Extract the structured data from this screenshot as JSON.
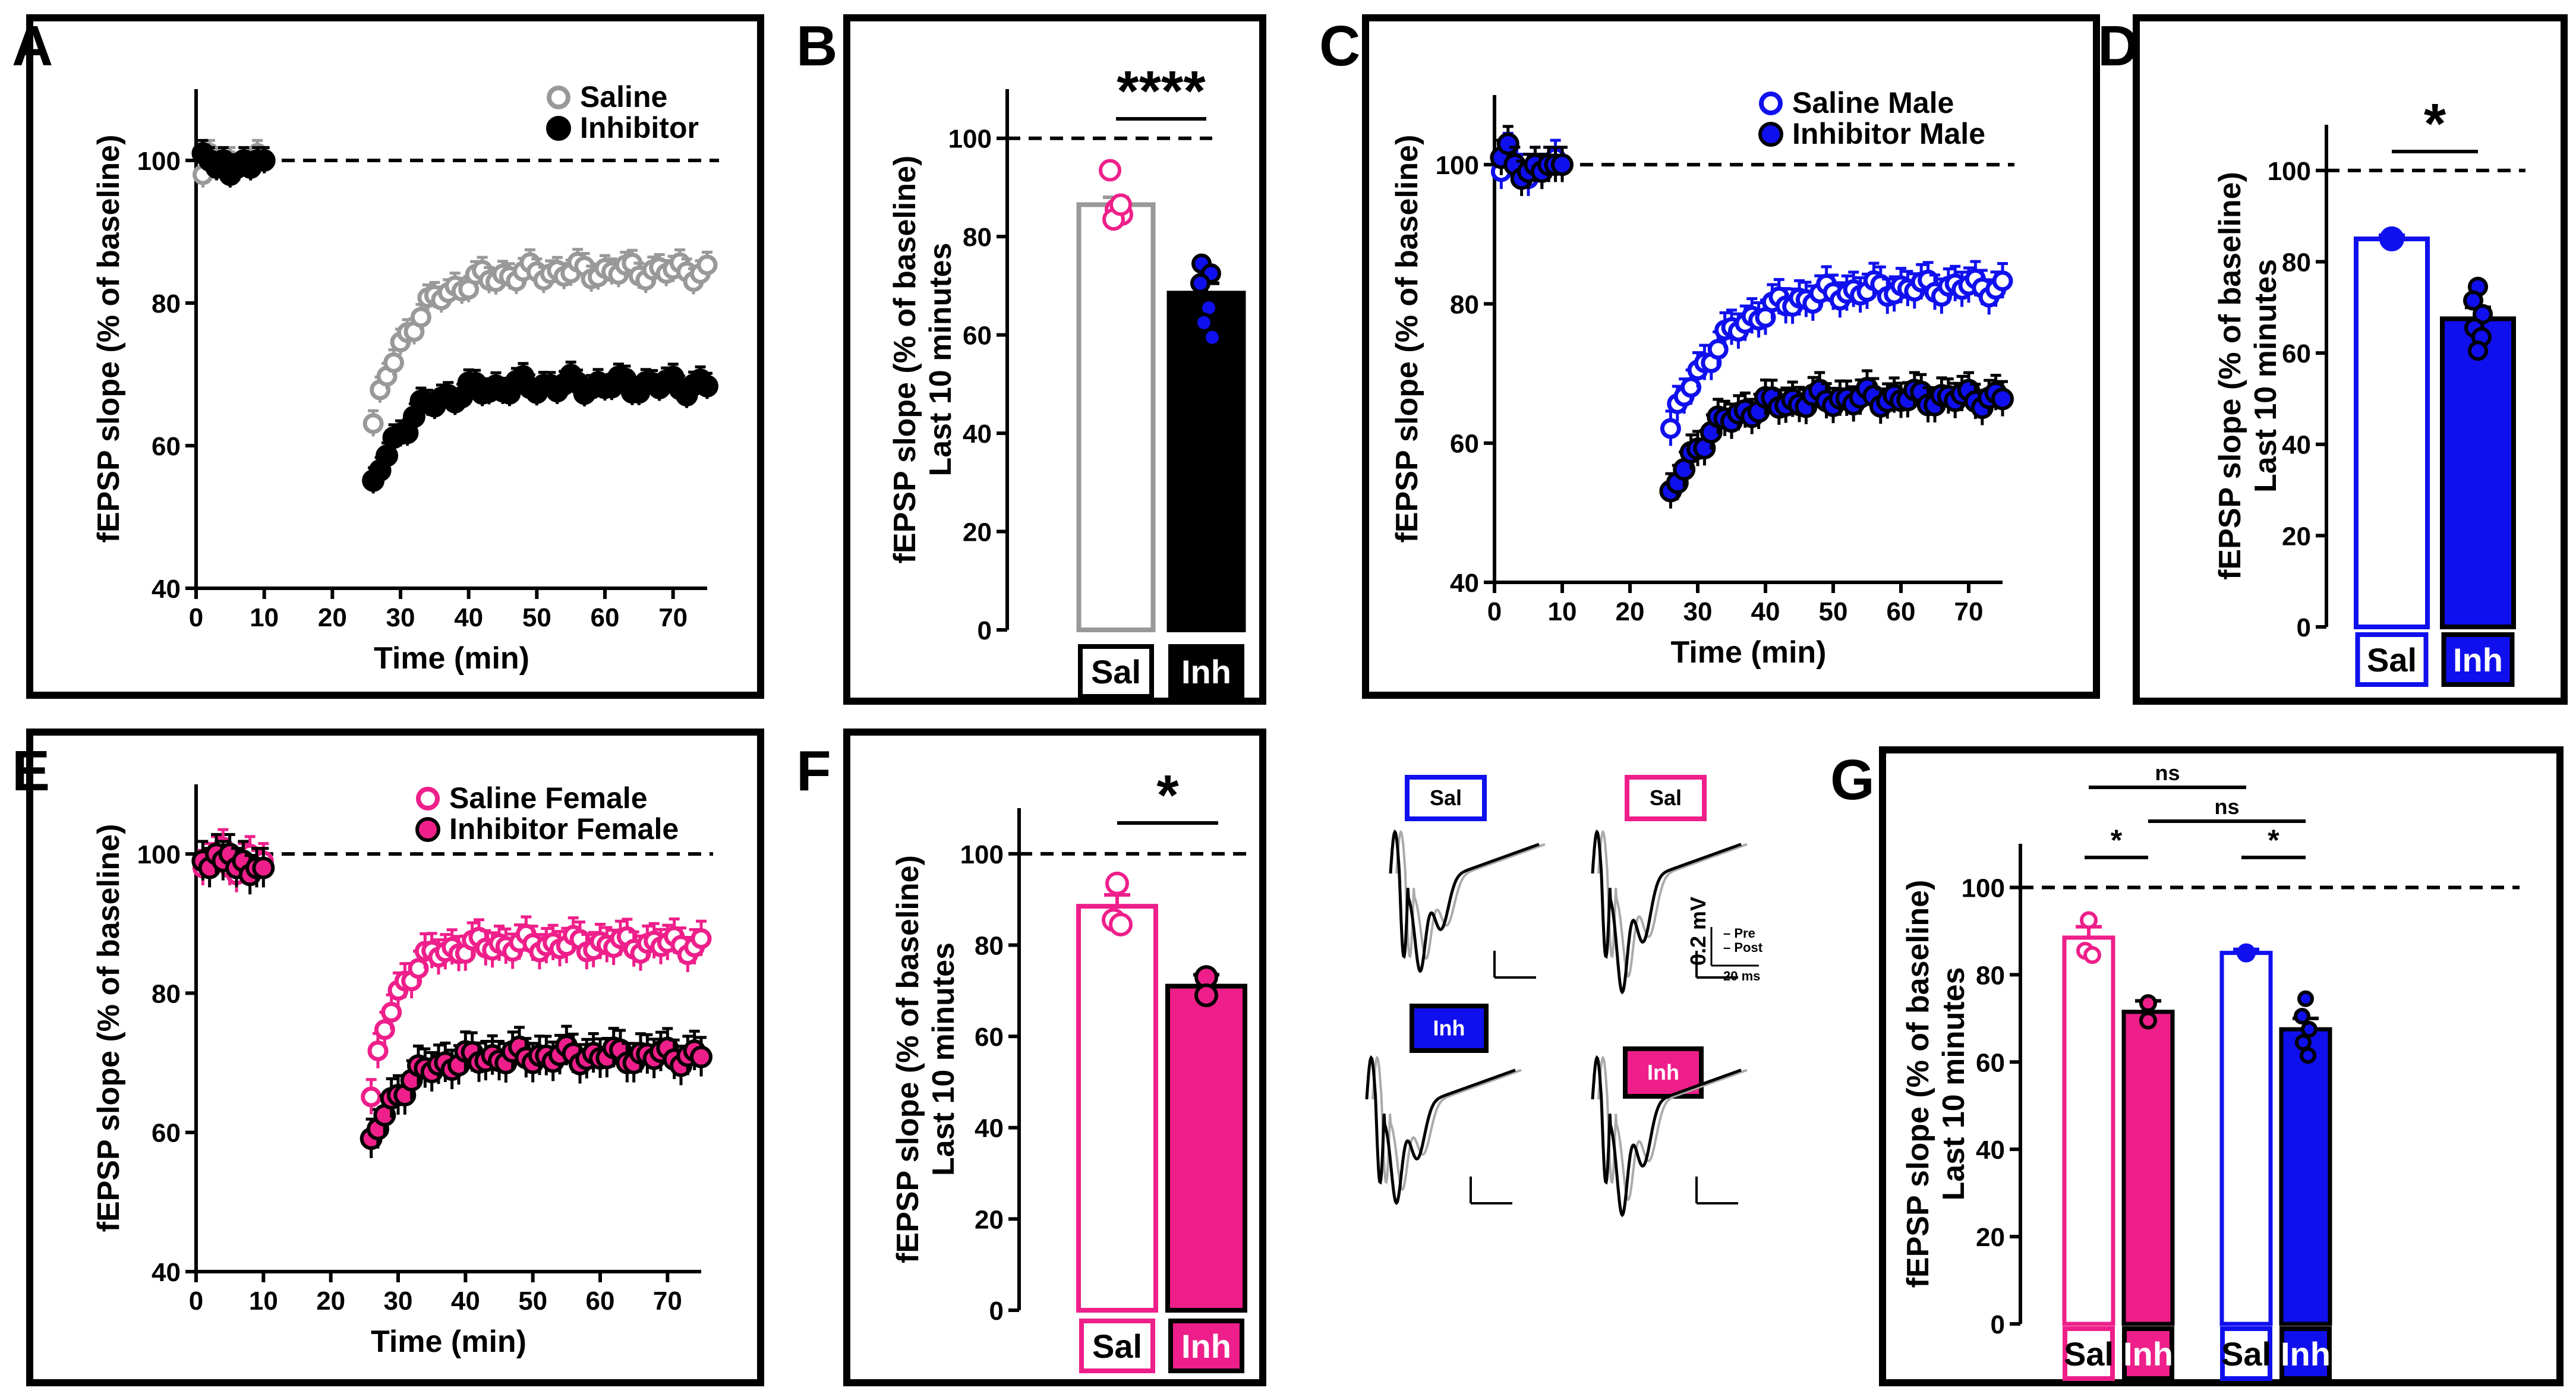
{
  "colors": {
    "saline_grey": "#999999",
    "black": "#000000",
    "blue": "#1010ee",
    "pink": "#ee1f8a",
    "dark_pink": "#c01a6a"
  },
  "chart_data": [
    {
      "id": "A",
      "panel_label": "A",
      "type": "scatter",
      "title": "",
      "xlabel": "Time (min)",
      "ylabel": "fEPSP slope (% of baseline)",
      "xlim": [
        0,
        75
      ],
      "ylim": [
        40,
        110
      ],
      "xticks": [
        0,
        10,
        20,
        30,
        40,
        50,
        60,
        70
      ],
      "yticks": [
        40,
        60,
        80,
        100
      ],
      "baseline": 100,
      "series": [
        {
          "name": "Saline",
          "style": "open",
          "color": "#999999",
          "baseline_x": [
            1,
            2,
            3,
            4,
            5,
            6,
            7,
            8,
            9,
            10
          ],
          "baseline_y": [
            98,
            101,
            100,
            99,
            100,
            99,
            100,
            100,
            101,
            100
          ],
          "start": 26,
          "end": 75,
          "y0": 63,
          "plateau": 84.5,
          "tau": 5.5,
          "err": 1.8
        },
        {
          "name": "Inhibitor",
          "style": "filled",
          "color": "#000000",
          "baseline_x": [
            1,
            2,
            3,
            4,
            5,
            6,
            7,
            8,
            9,
            10
          ],
          "baseline_y": [
            101,
            100,
            99,
            100,
            98,
            99,
            100,
            99,
            100,
            100
          ],
          "start": 26,
          "end": 75,
          "y0": 54,
          "plateau": 68.5,
          "tau": 5,
          "err": 1.8
        }
      ]
    },
    {
      "id": "C",
      "panel_label": "C",
      "type": "scatter",
      "xlabel": "Time (min)",
      "ylabel": "fEPSP slope (% of baseline)",
      "xlim": [
        0,
        75
      ],
      "ylim": [
        40,
        110
      ],
      "xticks": [
        0,
        10,
        20,
        30,
        40,
        50,
        60,
        70
      ],
      "yticks": [
        40,
        60,
        80,
        100
      ],
      "baseline": 100,
      "series": [
        {
          "name": "Saline Male",
          "style": "open",
          "color": "#1010ee",
          "baseline_x": [
            1,
            2,
            3,
            4,
            5,
            6,
            7,
            8,
            9,
            10
          ],
          "baseline_y": [
            99,
            102,
            100,
            99,
            98,
            100,
            99,
            100,
            101,
            100
          ],
          "start": 26,
          "end": 75,
          "y0": 62,
          "plateau": 82.5,
          "tau": 8,
          "err": 2.5
        },
        {
          "name": "Inhibitor Male",
          "style": "filled",
          "color": "#1010ee",
          "baseline_x": [
            1,
            2,
            3,
            4,
            5,
            6,
            7,
            8,
            9,
            10
          ],
          "baseline_y": [
            101,
            103,
            100,
            98,
            99,
            100,
            99,
            100,
            100,
            100
          ],
          "start": 26,
          "end": 75,
          "y0": 52,
          "plateau": 66.5,
          "tau": 5.5,
          "err": 2.5
        }
      ]
    },
    {
      "id": "E",
      "panel_label": "E",
      "type": "scatter",
      "xlabel": "Time (min)",
      "ylabel": "fEPSP slope (% of baseline)",
      "xlim": [
        0,
        75
      ],
      "ylim": [
        40,
        110
      ],
      "xticks": [
        0,
        10,
        20,
        30,
        40,
        50,
        60,
        70
      ],
      "yticks": [
        40,
        60,
        80,
        100
      ],
      "baseline": 100,
      "series": [
        {
          "name": "Saline Female",
          "style": "open",
          "color": "#ee1f8a",
          "baseline_x": [
            1,
            2,
            3,
            4,
            5,
            6,
            7,
            8,
            9,
            10
          ],
          "baseline_y": [
            98,
            99,
            100,
            101,
            98,
            97,
            99,
            100,
            98,
            99
          ],
          "start": 26,
          "end": 75,
          "y0": 65,
          "plateau": 87,
          "tau": 3.5,
          "err": 2.5
        },
        {
          "name": "Inhibitor Female",
          "style": "filled",
          "color": "#ee1f8a",
          "baseline_x": [
            1,
            2,
            3,
            4,
            5,
            6,
            7,
            8,
            9,
            10
          ],
          "baseline_y": [
            99,
            98,
            100,
            99,
            100,
            98,
            99,
            97,
            98,
            98
          ],
          "start": 26,
          "end": 75,
          "y0": 58,
          "plateau": 71,
          "tau": 4.5,
          "err": 2.8
        }
      ]
    },
    {
      "id": "B",
      "panel_label": "B",
      "type": "bar",
      "ylabel": "fEPSP slope (% of baseline)",
      "ylabel2": "Last 10 minutes",
      "ylim": [
        0,
        110
      ],
      "yticks": [
        0,
        20,
        40,
        60,
        80,
        100
      ],
      "categories": [
        "Sal",
        "Inh"
      ],
      "values": [
        86.5,
        68.5
      ],
      "errors": [
        1.5,
        2
      ],
      "significance": [
        {
          "from": 0,
          "to": 1,
          "label": "****"
        }
      ]
    },
    {
      "id": "D",
      "panel_label": "D",
      "type": "bar",
      "ylabel": "fEPSP slope (% of baseline)",
      "ylabel2": "Last 10 minutes",
      "ylim": [
        0,
        110
      ],
      "yticks": [
        0,
        20,
        40,
        60,
        80,
        100
      ],
      "categories": [
        "Sal",
        "Inh"
      ],
      "values": [
        85,
        67.5
      ],
      "errors": [
        0.8,
        2.5
      ],
      "significance": [
        {
          "from": 0,
          "to": 1,
          "label": "*"
        }
      ]
    },
    {
      "id": "F",
      "panel_label": "F",
      "type": "bar",
      "ylabel": "fEPSP slope (% of baseline)",
      "ylabel2": "Last 10 minutes",
      "ylim": [
        0,
        110
      ],
      "yticks": [
        0,
        20,
        40,
        60,
        80,
        100
      ],
      "categories": [
        "Sal",
        "Inh"
      ],
      "values": [
        88.5,
        71
      ],
      "errors": [
        2.5,
        2.5
      ],
      "significance": [
        {
          "from": 0,
          "to": 1,
          "label": "*"
        }
      ]
    },
    {
      "id": "G",
      "panel_label": "G",
      "type": "bar",
      "ylabel": "fEPSP slope (% of baseline)",
      "ylabel2": "Last 10 minutes",
      "ylim": [
        0,
        110
      ],
      "yticks": [
        0,
        20,
        40,
        60,
        80,
        100
      ],
      "categories": [
        "Sal",
        "Inh",
        "Sal",
        "Inh"
      ],
      "values": [
        88.5,
        71.5,
        85,
        67.5
      ],
      "errors": [
        2.5,
        2.5,
        0.8,
        2.5
      ],
      "significance": [
        {
          "from": 0,
          "to": 1,
          "label": "*"
        },
        {
          "from": 2,
          "to": 3,
          "label": "*"
        },
        {
          "from": 1,
          "to": 3,
          "label": "ns"
        },
        {
          "from": 0,
          "to": 2,
          "label": "ns"
        }
      ]
    }
  ],
  "traces": {
    "labels": [
      "Sal",
      "Sal",
      "Inh",
      "Inh"
    ],
    "scale_v": "0.2 mV",
    "scale_t": "20 ms",
    "legend_pre": "Pre",
    "legend_post": "Post"
  }
}
